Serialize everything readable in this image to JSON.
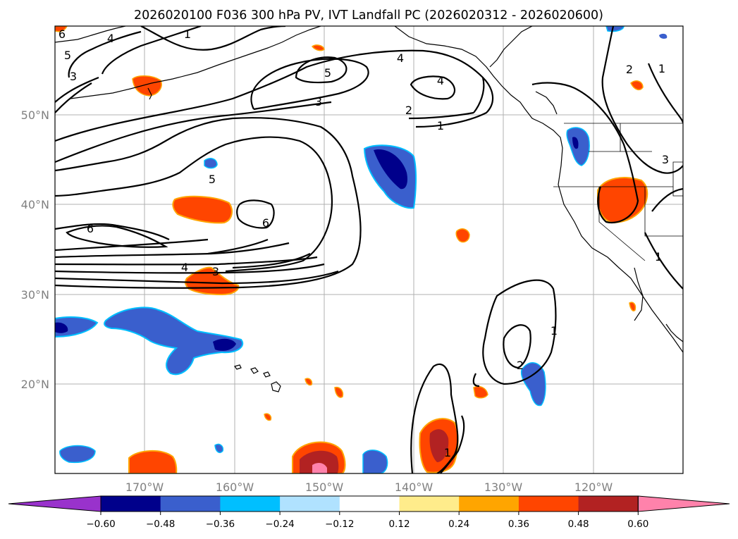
{
  "title": "2026020100 F036 300 hPa PV, IVT Landfall PC (2026020312 - 2026020600)",
  "map": {
    "lon_ticks": [
      "170°W",
      "160°W",
      "150°W",
      "140°W",
      "130°W",
      "120°W"
    ],
    "lat_ticks": [
      "50°N",
      "40°N",
      "30°N",
      "20°N"
    ]
  },
  "contour_labels": [
    {
      "id": "c6a",
      "text": "6"
    },
    {
      "id": "c5a",
      "text": "5"
    },
    {
      "id": "c4a",
      "text": "4"
    },
    {
      "id": "c1a",
      "text": "1"
    },
    {
      "id": "c3a",
      "text": "3"
    },
    {
      "id": "c5b",
      "text": "5"
    },
    {
      "id": "c4b",
      "text": "4"
    },
    {
      "id": "c4c",
      "text": "4"
    },
    {
      "id": "c3b",
      "text": "3"
    },
    {
      "id": "c2a",
      "text": "2"
    },
    {
      "id": "c1b",
      "text": "1"
    },
    {
      "id": "c2b",
      "text": "2"
    },
    {
      "id": "c1c",
      "text": "1"
    },
    {
      "id": "c5c",
      "text": "5"
    },
    {
      "id": "c6b",
      "text": "6"
    },
    {
      "id": "c6c",
      "text": "6"
    },
    {
      "id": "c4d",
      "text": "4"
    },
    {
      "id": "c3c",
      "text": "3"
    },
    {
      "id": "c3d",
      "text": "3"
    },
    {
      "id": "c1d",
      "text": "1"
    },
    {
      "id": "c1e",
      "text": "1"
    },
    {
      "id": "c2c",
      "text": "2"
    },
    {
      "id": "c1f",
      "text": "1"
    }
  ],
  "colorbar": {
    "colors": [
      "#9932cc",
      "#00008b",
      "#3a5fcd",
      "#00bfff",
      "#b0e2ff",
      "#ffffff",
      "#ffec8b",
      "#ffa500",
      "#ff4500",
      "#b22222",
      "#ff82ab"
    ],
    "tick_labels": [
      "−0.60",
      "−0.48",
      "−0.36",
      "−0.24",
      "−0.12",
      "0.12",
      "0.24",
      "0.36",
      "0.48",
      "0.60"
    ]
  }
}
